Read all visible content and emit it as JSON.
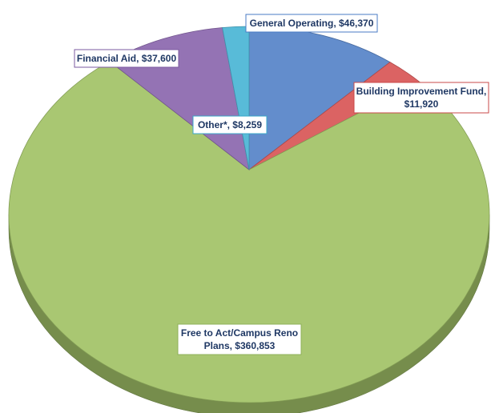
{
  "chart_data": {
    "type": "pie",
    "style": "3d",
    "title": "",
    "slices": [
      {
        "label": "General Operating, $46,370",
        "value": 46370,
        "color": "#5b87c9",
        "label_border": "#4a7bc4"
      },
      {
        "label": "Building Improvement Fund, $11,920",
        "value": 11920,
        "color": "#d95b5b",
        "label_border": "#c94a4a"
      },
      {
        "label": "Free to Act/Campus Reno Plans, $360,853",
        "value": 360853,
        "color": "#a4c46a",
        "label_border": "#8fb05a"
      },
      {
        "label": "Financial Aid, $37,600",
        "value": 37600,
        "color": "#8e6bb0",
        "label_border": "#7b5aa0"
      },
      {
        "label": "Other*, $8,259",
        "value": 8259,
        "color": "#4fb7d6",
        "label_border": "#3aa7c9"
      }
    ]
  }
}
